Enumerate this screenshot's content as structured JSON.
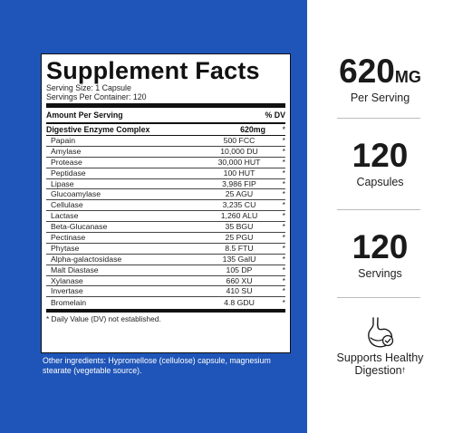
{
  "facts": {
    "title": "Supplement Facts",
    "serving_size": "Serving Size: 1 Capsule",
    "servings_per_container": "Servings Per Container: 120",
    "amount_header": "Amount Per Serving",
    "dv_header": "% DV",
    "complex": {
      "name": "Digestive Enzyme Complex",
      "amount": "620mg",
      "dv": "*"
    },
    "ingredients": [
      {
        "name": "Papain",
        "amount": "500 FCC",
        "dv": "*"
      },
      {
        "name": "Amylase",
        "amount": "10,000 DU",
        "dv": "*"
      },
      {
        "name": "Protease",
        "amount": "30,000 HUT",
        "dv": "*"
      },
      {
        "name": "Peptidase",
        "amount": "100 HUT",
        "dv": "*"
      },
      {
        "name": "Lipase",
        "amount": "3,986 FIP",
        "dv": "*"
      },
      {
        "name": "Glucoamylase",
        "amount": "25 AGU",
        "dv": "*"
      },
      {
        "name": "Cellulase",
        "amount": "3,235 CU",
        "dv": "*"
      },
      {
        "name": "Lactase",
        "amount": "1,260 ALU",
        "dv": "*"
      },
      {
        "name": "Beta-Glucanase",
        "amount": "35 BGU",
        "dv": "*"
      },
      {
        "name": "Pectinase",
        "amount": "25 PGU",
        "dv": "*"
      },
      {
        "name": "Phytase",
        "amount": "8.5 FTU",
        "dv": "*"
      },
      {
        "name": "Alpha-galactosidase",
        "amount": "135  GalU",
        "dv": "*"
      },
      {
        "name": "Malt Diastase",
        "amount": "105 DP",
        "dv": "*"
      },
      {
        "name": "Xylanase",
        "amount": "660 XU",
        "dv": "*"
      },
      {
        "name": "Invertase",
        "amount": "410 SU",
        "dv": "*"
      },
      {
        "name": "Bromelain",
        "amount": "4.8 GDU",
        "dv": "*"
      }
    ],
    "footnote": "* Daily Value (DV) not established."
  },
  "other_ingredients": "Other ingredients: Hypromellose (cellulose) capsule, magnesium stearate (vegetable source).",
  "stats": {
    "dose_value": "620",
    "dose_unit": "MG",
    "dose_label": "Per Serving",
    "capsules_value": "120",
    "capsules_label": "Capsules",
    "servings_value": "120",
    "servings_label": "Servings",
    "digest_line1": "Supports Healthy",
    "digest_line2": "Digestion",
    "digest_mark": "†",
    "digest_icon": "stomach-check-icon"
  },
  "colors": {
    "panel_blue": "#1f55b8",
    "text_dark": "#1a1a1a",
    "divider_gray": "#bcbcbc"
  }
}
